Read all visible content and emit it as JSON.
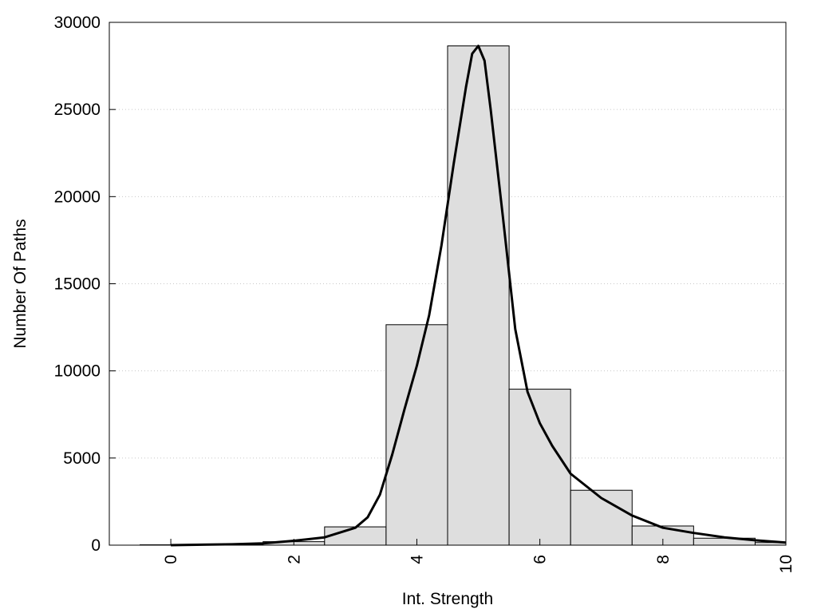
{
  "chart_data": {
    "type": "bar",
    "title": "",
    "xlabel": "Int. Strength",
    "ylabel": "Number Of Paths",
    "xlim": [
      -1,
      10
    ],
    "ylim": [
      0,
      30000
    ],
    "x_ticks": [
      0,
      2,
      4,
      6,
      8,
      10
    ],
    "y_ticks": [
      0,
      5000,
      10000,
      15000,
      20000,
      25000,
      30000
    ],
    "grid": "horizontal dotted",
    "legend": "none",
    "histogram": {
      "bin_width": 1,
      "bins": [
        {
          "center": 0,
          "count": 20
        },
        {
          "center": 1,
          "count": 50
        },
        {
          "center": 2,
          "count": 200
        },
        {
          "center": 3,
          "count": 1050
        },
        {
          "center": 4,
          "count": 12650
        },
        {
          "center": 5,
          "count": 28650
        },
        {
          "center": 6,
          "count": 8950
        },
        {
          "center": 7,
          "count": 3150
        },
        {
          "center": 8,
          "count": 1100
        },
        {
          "center": 9,
          "count": 400
        },
        {
          "center": 10,
          "count": 150
        }
      ]
    },
    "fit_curve": {
      "x": [
        0,
        1,
        1.5,
        2,
        2.5,
        3,
        3.2,
        3.4,
        3.6,
        3.8,
        4,
        4.2,
        4.4,
        4.6,
        4.8,
        4.9,
        5,
        5.1,
        5.2,
        5.4,
        5.6,
        5.8,
        6,
        6.2,
        6.5,
        7,
        7.5,
        8,
        8.5,
        9,
        9.5,
        10
      ],
      "y": [
        0,
        50,
        100,
        250,
        450,
        1000,
        1600,
        2900,
        5200,
        7800,
        10300,
        13200,
        17200,
        21900,
        26300,
        28200,
        28650,
        27800,
        25000,
        18800,
        12400,
        8800,
        7000,
        5700,
        4100,
        2700,
        1700,
        1000,
        700,
        450,
        280,
        150
      ]
    },
    "colors": {
      "bar_fill": "#dedede",
      "bar_stroke": "#000000",
      "curve": "#000000",
      "grid": "#c8c8c8"
    }
  }
}
